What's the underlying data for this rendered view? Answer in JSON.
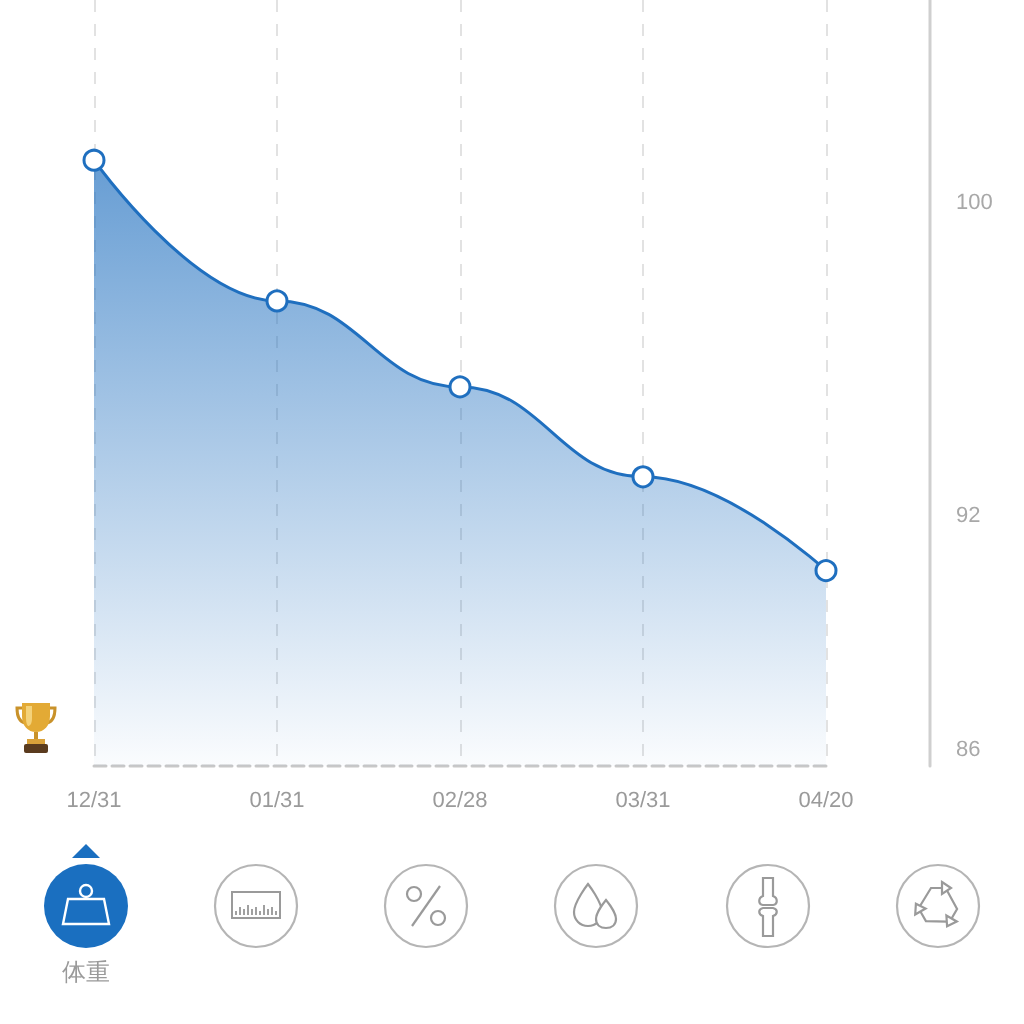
{
  "chart_data": {
    "type": "area",
    "categories": [
      "12/31",
      "01/31",
      "02/28",
      "03/31",
      "04/20"
    ],
    "values": [
      101.1,
      97.5,
      95.3,
      93.0,
      90.6
    ],
    "color": "#1f6fbf",
    "ylim": [
      85.6,
      105.2
    ],
    "yticks": [
      86,
      92,
      100
    ],
    "grid": "x",
    "marker": "circle",
    "annotations": [
      "体重"
    ]
  }
}
